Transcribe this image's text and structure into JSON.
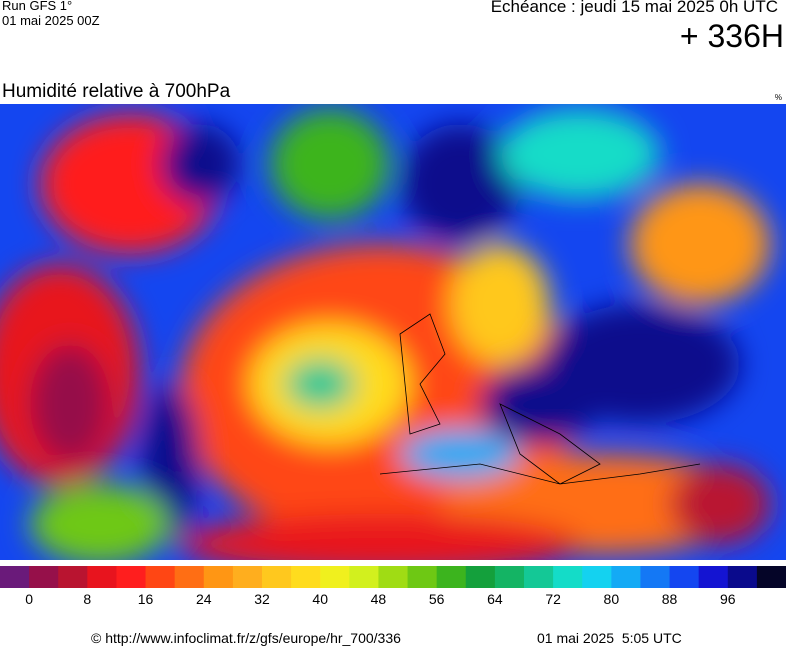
{
  "header": {
    "run": "Run GFS 1°",
    "run_date": "01 mai 2025 00Z",
    "valid": "Echéance : jeudi 15 mai 2025 0h UTC",
    "lead": "+ 336H"
  },
  "map": {
    "title": "Humidité relative à 700hPa",
    "unit": "%"
  },
  "legend": {
    "lim": [
      -4,
      104
    ],
    "ticks": [
      0,
      8,
      16,
      24,
      32,
      40,
      48,
      56,
      64,
      72,
      80,
      88,
      96
    ],
    "colors": [
      "#6a1a7a",
      "#96104a",
      "#b91430",
      "#e8141e",
      "#ff1e1e",
      "#ff4614",
      "#ff6e14",
      "#ff9614",
      "#ffae1e",
      "#ffc81e",
      "#ffdc1e",
      "#f0f01e",
      "#d2f01e",
      "#a0dc14",
      "#6ec814",
      "#3cb41e",
      "#14a03c",
      "#14b464",
      "#14c896",
      "#14dcc8",
      "#14d2f0",
      "#14aaf5",
      "#1478f5",
      "#1446f0",
      "#1414d2",
      "#0a0a8c",
      "#050528"
    ]
  },
  "footer": {
    "source": "© http://www.infoclimat.fr/z/gfs/europe/hr_700/336",
    "generated": "01 mai 2025  5:05 UTC"
  }
}
